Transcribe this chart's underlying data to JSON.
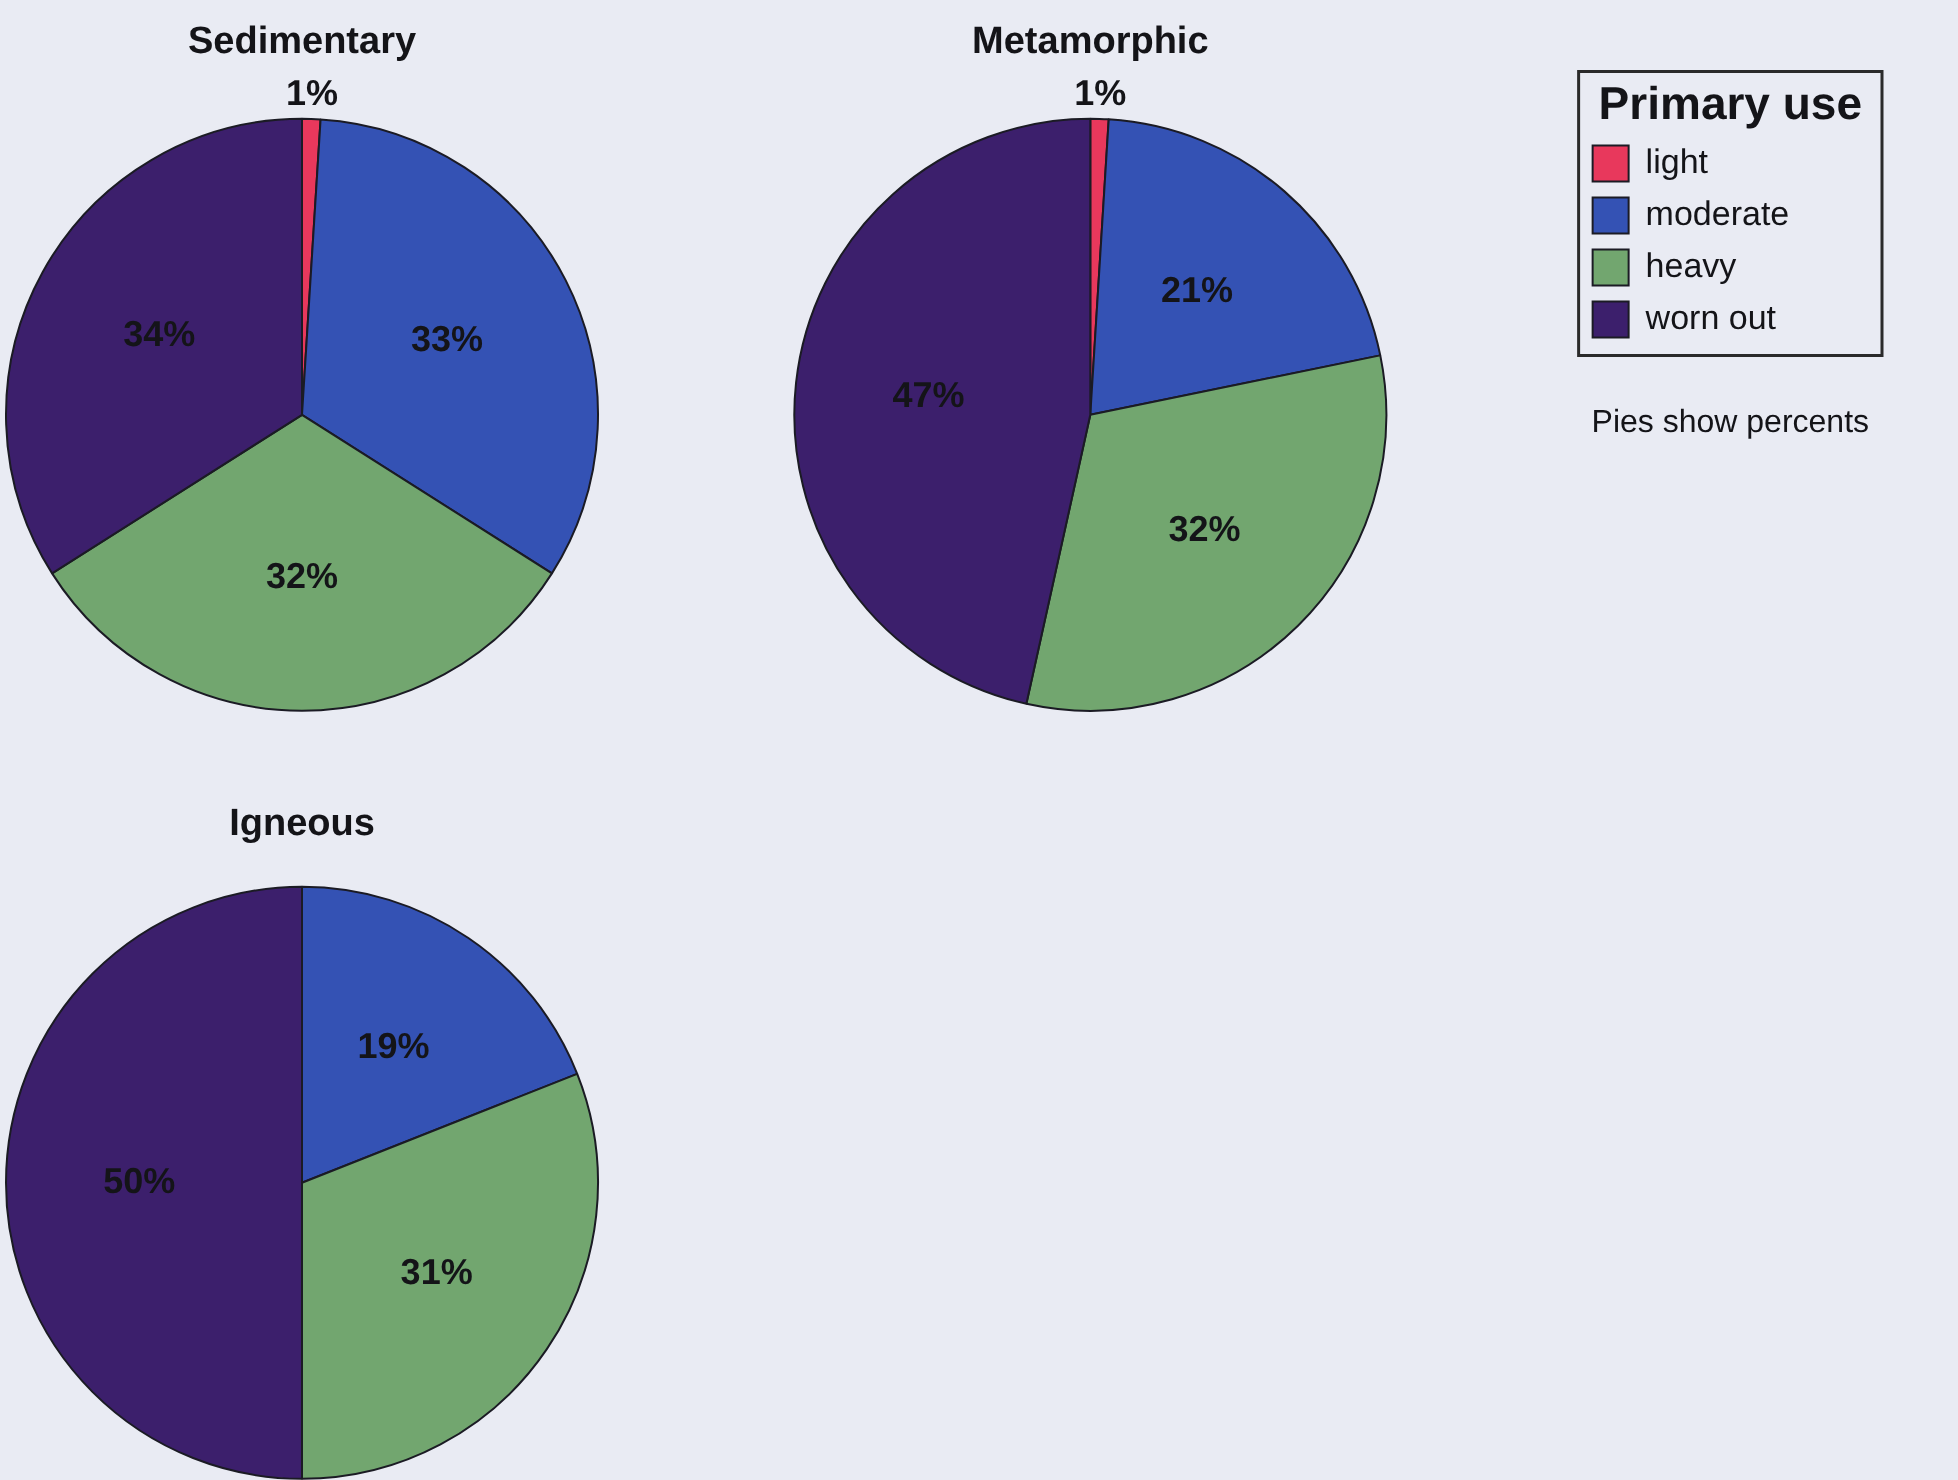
{
  "chart_data": [
    {
      "type": "pie",
      "title": "Sedimentary",
      "categories": [
        null,
        null,
        null,
        null
      ],
      "values": [
        1,
        33,
        32,
        34
      ],
      "value_labels": [
        "1%",
        "33%",
        "32%",
        "34%"
      ],
      "colors": [
        "#e8385c",
        "#3452b4",
        "#72a66f",
        "#3c1f6c"
      ]
    },
    {
      "type": "pie",
      "title": "Metamorphic",
      "categories": [
        "light",
        "moderate",
        "heavy",
        "worn out"
      ],
      "values": [
        1,
        21,
        32,
        47
      ],
      "value_labels": [
        "1%",
        "21%",
        "32%",
        "47%"
      ],
      "colors": [
        "#e8385c",
        "#3452b4",
        "#72a66f",
        "#3c1f6c"
      ],
      "legend": "top right",
      "legend_title": "Primary use",
      "annotations": [
        "Pies show percents"
      ]
    },
    {
      "type": "pie",
      "title": "Igneous",
      "categories": [
        null,
        null,
        null
      ],
      "values": [
        19,
        31,
        50
      ],
      "value_labels": [
        "19%",
        "31%",
        "50%"
      ],
      "colors": [
        "#3452b4",
        "#72a66f",
        "#3c1f6c"
      ]
    }
  ]
}
